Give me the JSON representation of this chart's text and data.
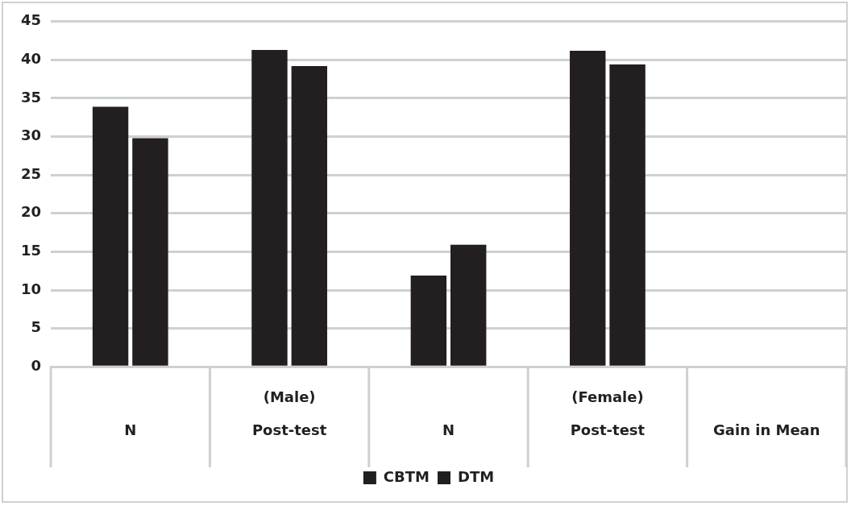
{
  "chart_data": {
    "type": "bar",
    "categories": [
      "N",
      "(Male)\nPost-test",
      "N",
      "(Female)\nPost-test",
      "Gain in Mean"
    ],
    "series": [
      {
        "name": "CBTM",
        "color": "#231f20",
        "values": [
          33.9,
          41.3,
          11.9,
          41.2,
          null
        ]
      },
      {
        "name": "DTM",
        "color": "#231f20",
        "values": [
          29.8,
          39.2,
          15.9,
          39.4,
          null
        ]
      }
    ],
    "ylim": [
      0,
      45
    ],
    "yticks": [
      0,
      5,
      10,
      15,
      20,
      25,
      30,
      35,
      40,
      45
    ],
    "grid": "y",
    "legend": "bottom"
  }
}
